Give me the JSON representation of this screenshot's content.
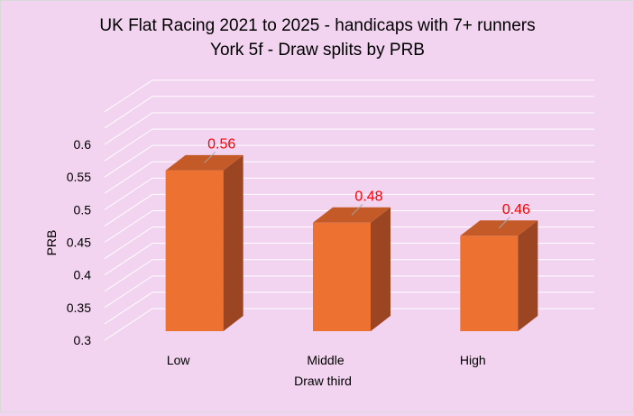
{
  "chart_data": {
    "type": "bar",
    "title_line1": "UK Flat Racing 2021 to 2025 - handicaps with 7+ runners",
    "title_line2": "York 5f - Draw splits by PRB",
    "xlabel": "Draw third",
    "ylabel": "PRB",
    "categories": [
      "Low",
      "Middle",
      "High"
    ],
    "values": [
      0.56,
      0.48,
      0.46
    ],
    "data_labels": [
      "0.56",
      "0.48",
      "0.46"
    ],
    "ylim": [
      0.3,
      0.6
    ],
    "yticks": [
      "0.3",
      "0.35",
      "0.4",
      "0.45",
      "0.5",
      "0.55",
      "0.6"
    ],
    "grid": true,
    "style_3d": true,
    "colors": {
      "bar_front": "#ed7130",
      "bar_side": "#9c4522",
      "bar_top": "#c35a28",
      "data_label": "#ff0000",
      "gridline": "#ffffff",
      "background": "#f2d3f0"
    }
  }
}
